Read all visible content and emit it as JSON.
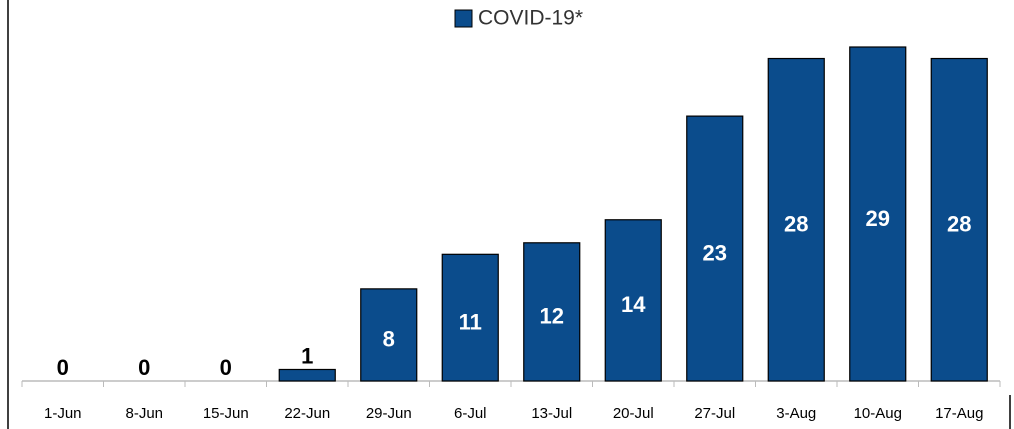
{
  "chart_data": {
    "type": "bar",
    "categories": [
      "1-Jun",
      "8-Jun",
      "15-Jun",
      "22-Jun",
      "29-Jun",
      "6-Jul",
      "13-Jul",
      "20-Jul",
      "27-Jul",
      "3-Aug",
      "10-Aug",
      "17-Aug"
    ],
    "series": [
      {
        "name": "COVID-19*",
        "color": "#0b4c8c",
        "values": [
          0,
          0,
          0,
          1,
          8,
          11,
          12,
          14,
          23,
          28,
          29,
          28
        ]
      }
    ],
    "legend": "top"
  }
}
